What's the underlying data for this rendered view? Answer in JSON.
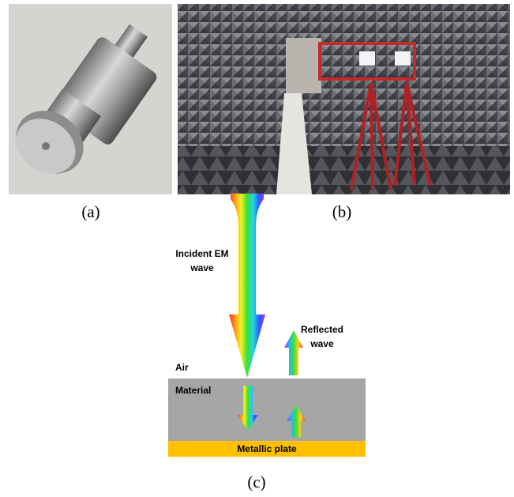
{
  "panels": [
    {
      "caption": "(a)"
    },
    {
      "caption": "(b)"
    }
  ],
  "diagram": {
    "caption": "(c)",
    "incident_label": [
      "Incident EM",
      "wave"
    ],
    "reflected_label": [
      "Reflected",
      "wave"
    ],
    "air_label": "Air",
    "material_label": "Material",
    "plate_label": "Metallic plate"
  }
}
